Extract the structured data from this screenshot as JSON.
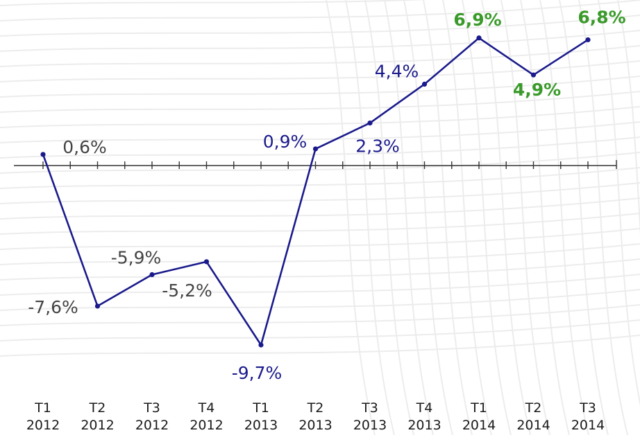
{
  "chart_data": {
    "type": "line",
    "title": "",
    "xlabel": "",
    "ylabel": "",
    "grid": false,
    "categories": [
      {
        "quarter": "T1",
        "year": "2012"
      },
      {
        "quarter": "T2",
        "year": "2012"
      },
      {
        "quarter": "T3",
        "year": "2012"
      },
      {
        "quarter": "T4",
        "year": "2012"
      },
      {
        "quarter": "T1",
        "year": "2013"
      },
      {
        "quarter": "T2",
        "year": "2013"
      },
      {
        "quarter": "T3",
        "year": "2013"
      },
      {
        "quarter": "T4",
        "year": "2013"
      },
      {
        "quarter": "T1",
        "year": "2014"
      },
      {
        "quarter": "T2",
        "year": "2014"
      },
      {
        "quarter": "T3",
        "year": "2014"
      }
    ],
    "series": [
      {
        "values": [
          0.6,
          -7.6,
          -5.9,
          -5.2,
          -9.7,
          0.9,
          2.3,
          4.4,
          6.9,
          4.9,
          6.8
        ],
        "labels": [
          "0,6%",
          "-7,6%",
          "-5,9%",
          "-5,2%",
          "-9,7%",
          "0,9%",
          "2,3%",
          "4,4%",
          "6,9%",
          "4,9%",
          "6,8%"
        ]
      }
    ],
    "colors": {
      "line": "#1a1a8c",
      "label_past": "#444444",
      "label_mid": "#1a1a8c",
      "label_recent": "#3a9a2a",
      "axis": "#333333"
    },
    "ylim": [
      -10,
      7
    ]
  }
}
